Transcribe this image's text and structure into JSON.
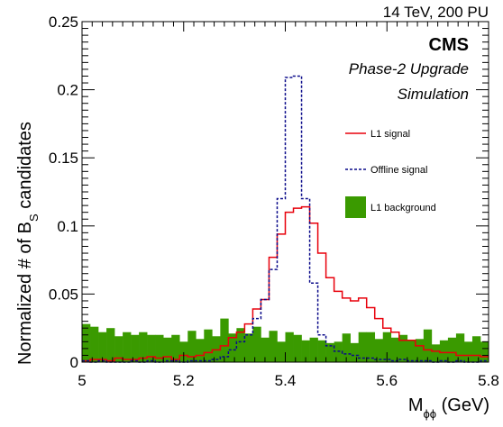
{
  "chart_data": {
    "type": "histogram",
    "header_right": "14 TeV, 200 PU",
    "experiment": "CMS",
    "subtitle_1": "Phase-2 Upgrade",
    "subtitle_2": "Simulation",
    "xlabel_main": "M",
    "xlabel_sub": "ϕϕ",
    "xlabel_unit": " (GeV)",
    "ylabel_main": "Normalized # of B",
    "ylabel_sub": "S",
    "ylabel_rest": " candidates",
    "xlim": [
      5.0,
      5.8
    ],
    "ylim": [
      0,
      0.25
    ],
    "x_ticks": [
      {
        "value": 5.0,
        "label": "5"
      },
      {
        "value": 5.2,
        "label": "5.2"
      },
      {
        "value": 5.4,
        "label": "5.4"
      },
      {
        "value": 5.6,
        "label": "5.6"
      },
      {
        "value": 5.8,
        "label": "5.8"
      }
    ],
    "y_ticks": [
      {
        "value": 0,
        "label": "0"
      },
      {
        "value": 0.05,
        "label": "0.05"
      },
      {
        "value": 0.1,
        "label": "0.1"
      },
      {
        "value": 0.15,
        "label": "0.15"
      },
      {
        "value": 0.2,
        "label": "0.2"
      },
      {
        "value": 0.25,
        "label": "0.25"
      }
    ],
    "bin_edges": {
      "start": 5.0,
      "width": 0.016,
      "count": 50
    },
    "series": [
      {
        "name": "L1 signal",
        "style": "line",
        "color": "#e8000b",
        "values": [
          0.001,
          0.002,
          0.002,
          0.001,
          0.003,
          0.002,
          0.002,
          0.003,
          0.004,
          0.003,
          0.004,
          0.002,
          0.005,
          0.004,
          0.005,
          0.007,
          0.009,
          0.012,
          0.018,
          0.022,
          0.028,
          0.039,
          0.046,
          0.077,
          0.094,
          0.11,
          0.113,
          0.114,
          0.102,
          0.08,
          0.062,
          0.052,
          0.047,
          0.045,
          0.047,
          0.04,
          0.032,
          0.025,
          0.022,
          0.016,
          0.016,
          0.012,
          0.009,
          0.008,
          0.007,
          0.007,
          0.005,
          0.005,
          0.005,
          0.004
        ]
      },
      {
        "name": "Offline signal",
        "style": "dashed-line",
        "color": "#0b0b8a",
        "values": [
          0.001,
          0.0,
          0.001,
          0.0,
          0.0,
          0.0,
          0.001,
          0.0,
          0.001,
          0.0,
          0.001,
          0.001,
          0.0,
          0.001,
          0.001,
          0.001,
          0.002,
          0.004,
          0.009,
          0.015,
          0.02,
          0.032,
          0.046,
          0.068,
          0.12,
          0.209,
          0.21,
          0.12,
          0.058,
          0.02,
          0.012,
          0.008,
          0.006,
          0.005,
          0.003,
          0.003,
          0.002,
          0.002,
          0.001,
          0.002,
          0.001,
          0.001,
          0.001,
          0.0,
          0.001,
          0.0,
          0.001,
          0.0,
          0.0,
          0.001
        ]
      },
      {
        "name": "L1 background",
        "style": "fill",
        "color": "#3a9a00",
        "values": [
          0.028,
          0.026,
          0.022,
          0.025,
          0.019,
          0.022,
          0.02,
          0.022,
          0.02,
          0.02,
          0.018,
          0.02,
          0.015,
          0.023,
          0.017,
          0.024,
          0.019,
          0.032,
          0.021,
          0.025,
          0.021,
          0.026,
          0.018,
          0.023,
          0.015,
          0.022,
          0.02,
          0.016,
          0.018,
          0.016,
          0.014,
          0.015,
          0.021,
          0.014,
          0.022,
          0.022,
          0.017,
          0.022,
          0.018,
          0.02,
          0.016,
          0.017,
          0.024,
          0.013,
          0.016,
          0.018,
          0.021,
          0.015,
          0.019,
          0.015
        ]
      }
    ],
    "legend_placement": "right"
  }
}
